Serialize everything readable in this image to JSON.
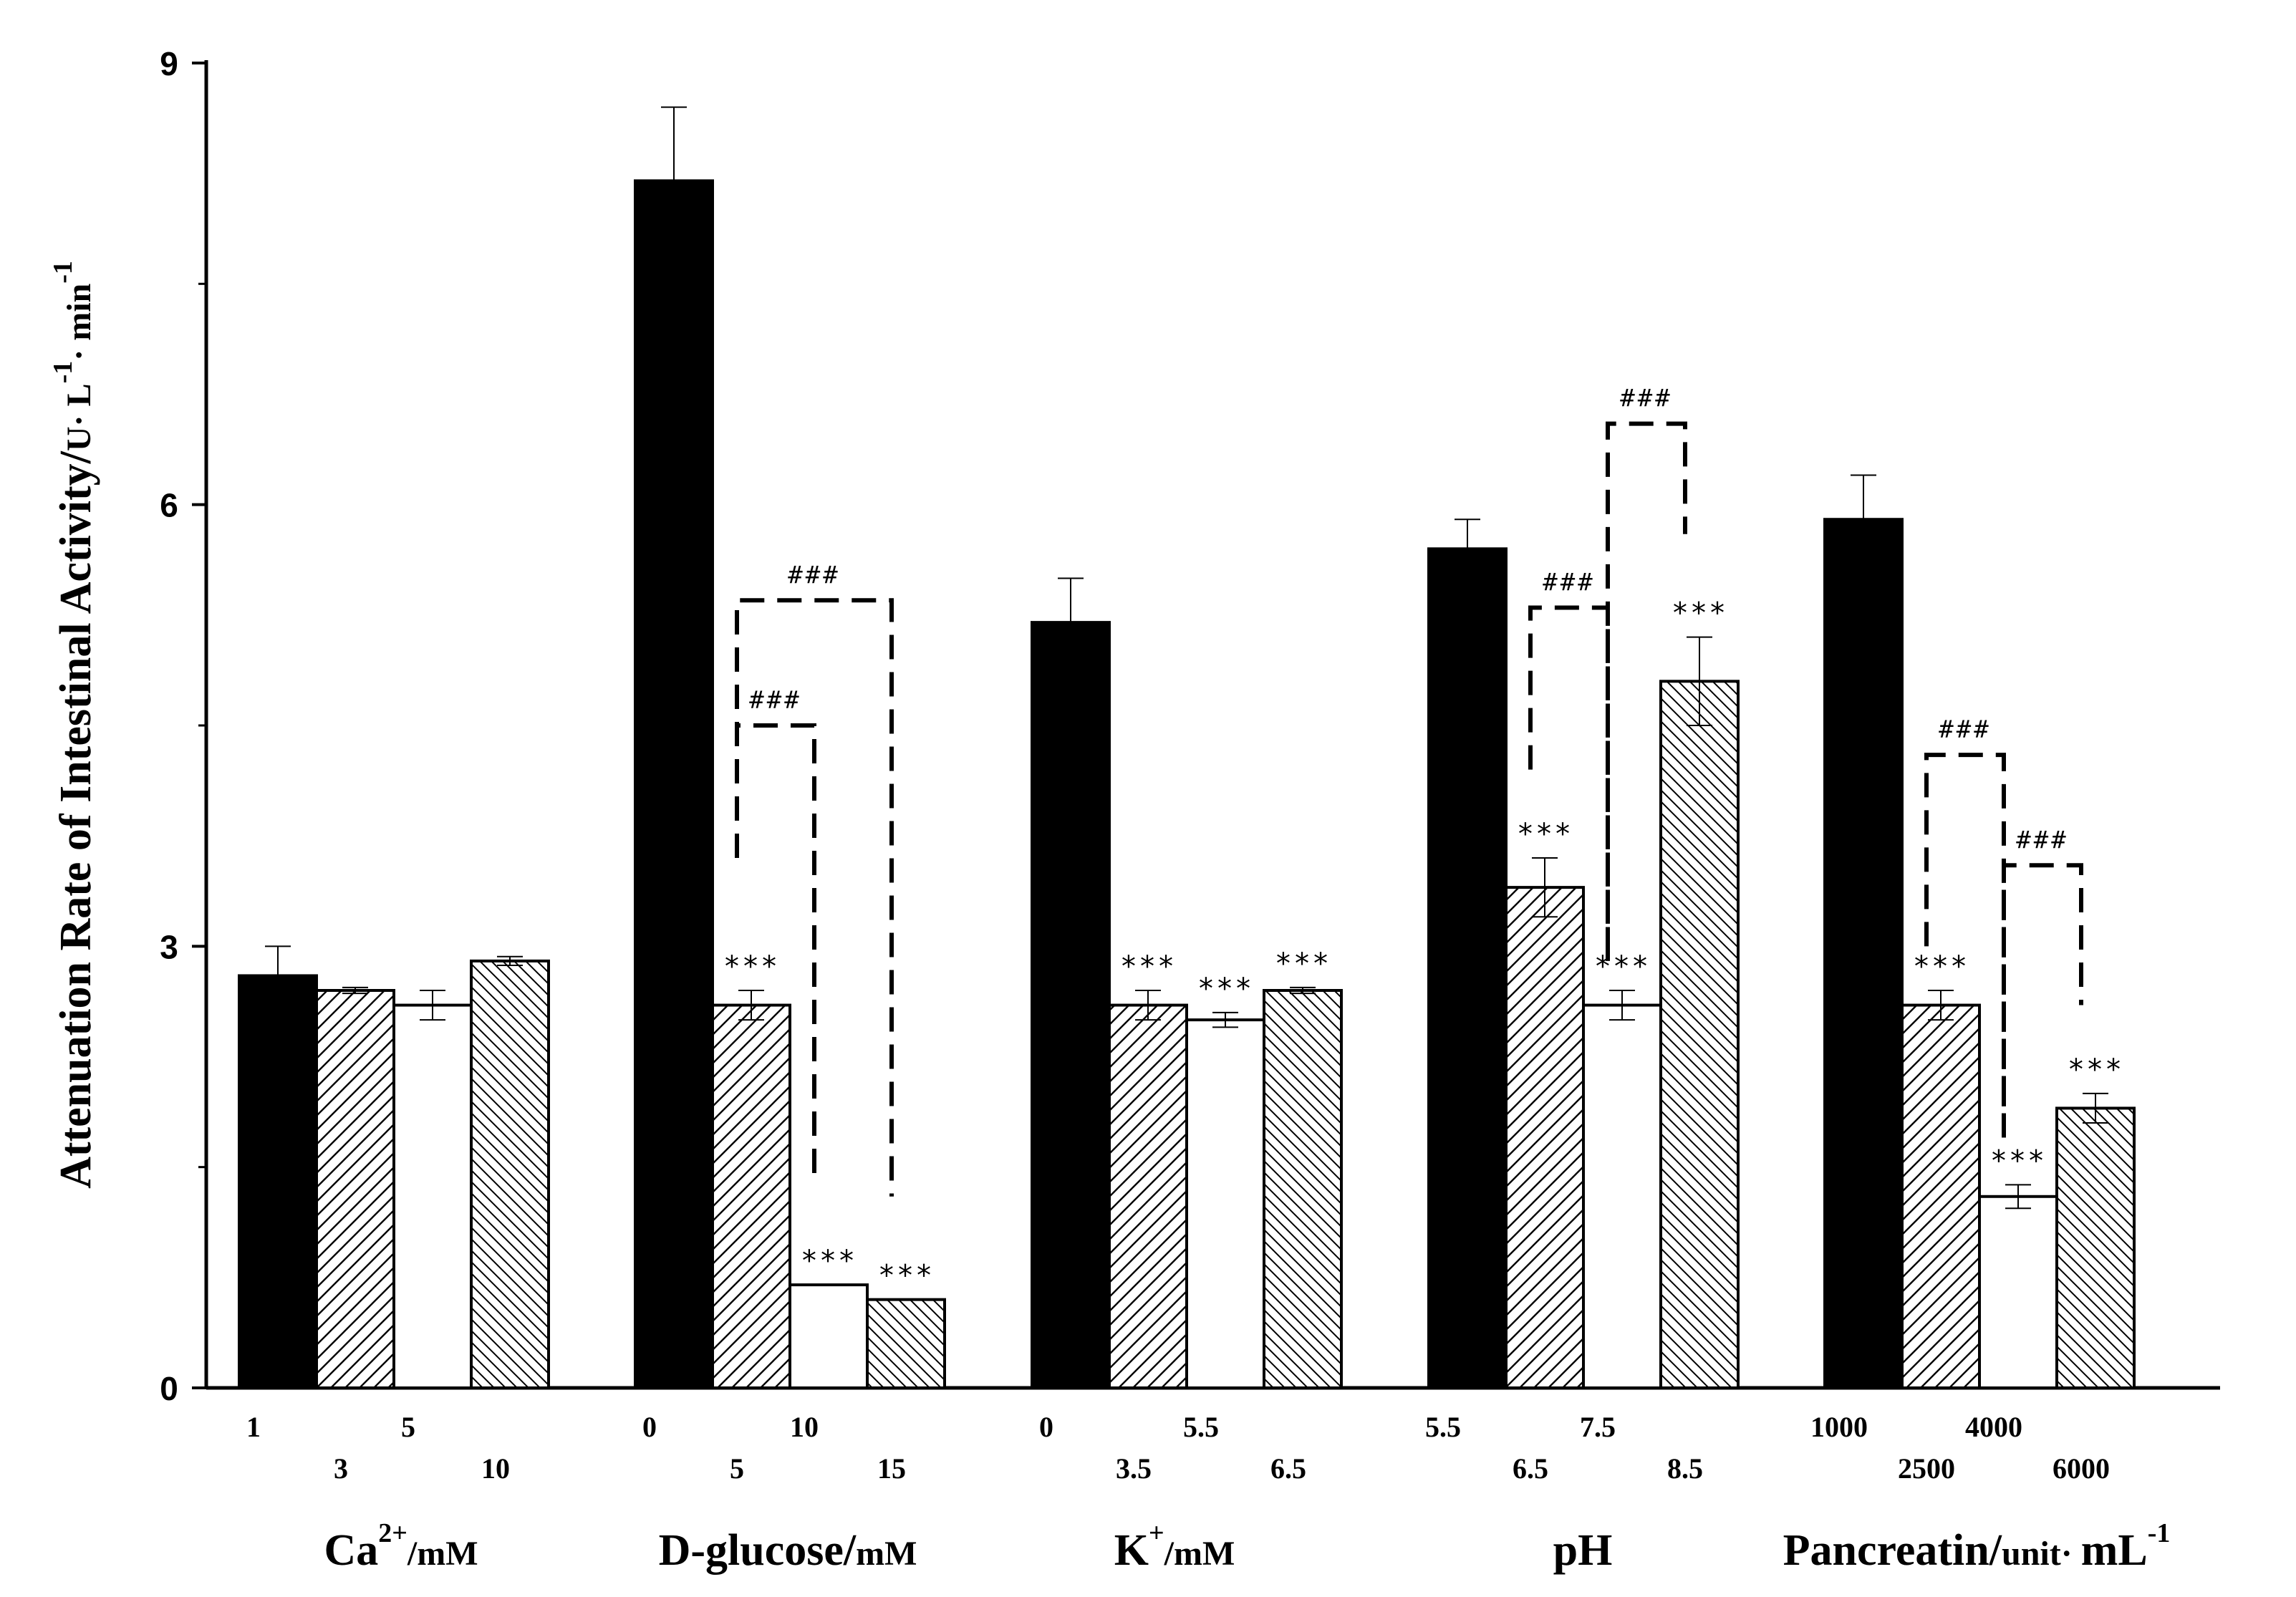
{
  "chart_data": {
    "type": "bar",
    "ylabel": {
      "main": "Attenuation Rate of  Intestinal Activity/",
      "unit": "U· L",
      "sup1": "-1",
      "mid": "· min",
      "sup2": "-1"
    },
    "ylim": [
      0,
      9
    ],
    "yticks": [
      "0",
      "3",
      "6",
      "9"
    ],
    "colors": {
      "black": "#000000",
      "white": "#ffffff",
      "stroke": "#000000"
    },
    "groups": [
      {
        "label": {
          "pre": "Ca",
          "sup": "2+",
          "post": "/mM"
        },
        "bars": [
          {
            "category": "1",
            "value": 2.8,
            "error": 0.2,
            "pattern": "solid"
          },
          {
            "category": "3",
            "value": 2.7,
            "error": 0.02,
            "pattern": "hatch-right"
          },
          {
            "category": "5",
            "value": 2.6,
            "error": 0.1,
            "pattern": "none"
          },
          {
            "category": "10",
            "value": 2.9,
            "error": 0.03,
            "pattern": "hatch-left"
          }
        ]
      },
      {
        "label": {
          "pre": "D-glucose/",
          "small": "mM"
        },
        "bars": [
          {
            "category": "0",
            "value": 8.2,
            "error": 0.5,
            "pattern": "solid"
          },
          {
            "category": "5",
            "value": 2.6,
            "error": 0.1,
            "pattern": "hatch-right",
            "stars": "***"
          },
          {
            "category": "10",
            "value": 0.7,
            "error": 0.0,
            "pattern": "none",
            "stars": "***"
          },
          {
            "category": "15",
            "value": 0.6,
            "error": 0.0,
            "pattern": "hatch-left",
            "stars": "***"
          }
        ]
      },
      {
        "label": {
          "pre": "K",
          "sup": "+",
          "post": "/mM"
        },
        "bars": [
          {
            "category": "0",
            "value": 5.2,
            "error": 0.3,
            "pattern": "solid"
          },
          {
            "category": "3.5",
            "value": 2.6,
            "error": 0.1,
            "pattern": "hatch-right",
            "stars": "***"
          },
          {
            "category": "5.5",
            "value": 2.5,
            "error": 0.05,
            "pattern": "none",
            "stars": "***"
          },
          {
            "category": "6.5",
            "value": 2.7,
            "error": 0.02,
            "pattern": "hatch-left",
            "stars": "***"
          }
        ]
      },
      {
        "label": {
          "pre": "pH"
        },
        "bars": [
          {
            "category": "5.5",
            "value": 5.7,
            "error": 0.2,
            "pattern": "solid"
          },
          {
            "category": "6.5",
            "value": 3.4,
            "error": 0.2,
            "pattern": "hatch-right",
            "stars": "***"
          },
          {
            "category": "7.5",
            "value": 2.6,
            "error": 0.1,
            "pattern": "none",
            "stars": "***"
          },
          {
            "category": "8.5",
            "value": 4.8,
            "error": 0.3,
            "pattern": "hatch-left",
            "stars": "***"
          }
        ]
      },
      {
        "label": {
          "pre": "Pancreatin/",
          "small": "unit· ",
          "post": " mL",
          "sup": "-1"
        },
        "bars": [
          {
            "category": "1000",
            "value": 5.9,
            "error": 0.3,
            "pattern": "solid"
          },
          {
            "category": "2500",
            "value": 2.6,
            "error": 0.1,
            "pattern": "hatch-right",
            "stars": "***"
          },
          {
            "category": "4000",
            "value": 1.3,
            "error": 0.08,
            "pattern": "none",
            "stars": "***"
          },
          {
            "category": "6000",
            "value": 1.9,
            "error": 0.1,
            "pattern": "hatch-left",
            "stars": "***"
          }
        ]
      }
    ],
    "brackets": [
      {
        "group": 1,
        "from": 1,
        "to": 3,
        "top": 5.35,
        "left_bottom": 3.6,
        "right_bottom": 1.3,
        "label": "###"
      },
      {
        "group": 1,
        "from": 1,
        "to": 2,
        "top": 4.5,
        "left_bottom": 3.6,
        "right_bottom": 1.4,
        "label": "###"
      },
      {
        "group": 3,
        "from": 1,
        "to": 2,
        "top": 5.3,
        "left_bottom": 4.2,
        "right_bottom": 3.0,
        "label": "###"
      },
      {
        "group": 3,
        "from": 2,
        "to": 3,
        "top": 6.55,
        "left_bottom": 2.9,
        "right_bottom": 5.8,
        "label": "###"
      },
      {
        "group": 4,
        "from": 1,
        "to": 2,
        "top": 4.3,
        "left_bottom": 3.0,
        "right_bottom": 1.8,
        "label": "###"
      },
      {
        "group": 4,
        "from": 2,
        "to": 3,
        "top": 3.55,
        "left_bottom": 1.7,
        "right_bottom": 2.6,
        "label": "###"
      }
    ]
  }
}
